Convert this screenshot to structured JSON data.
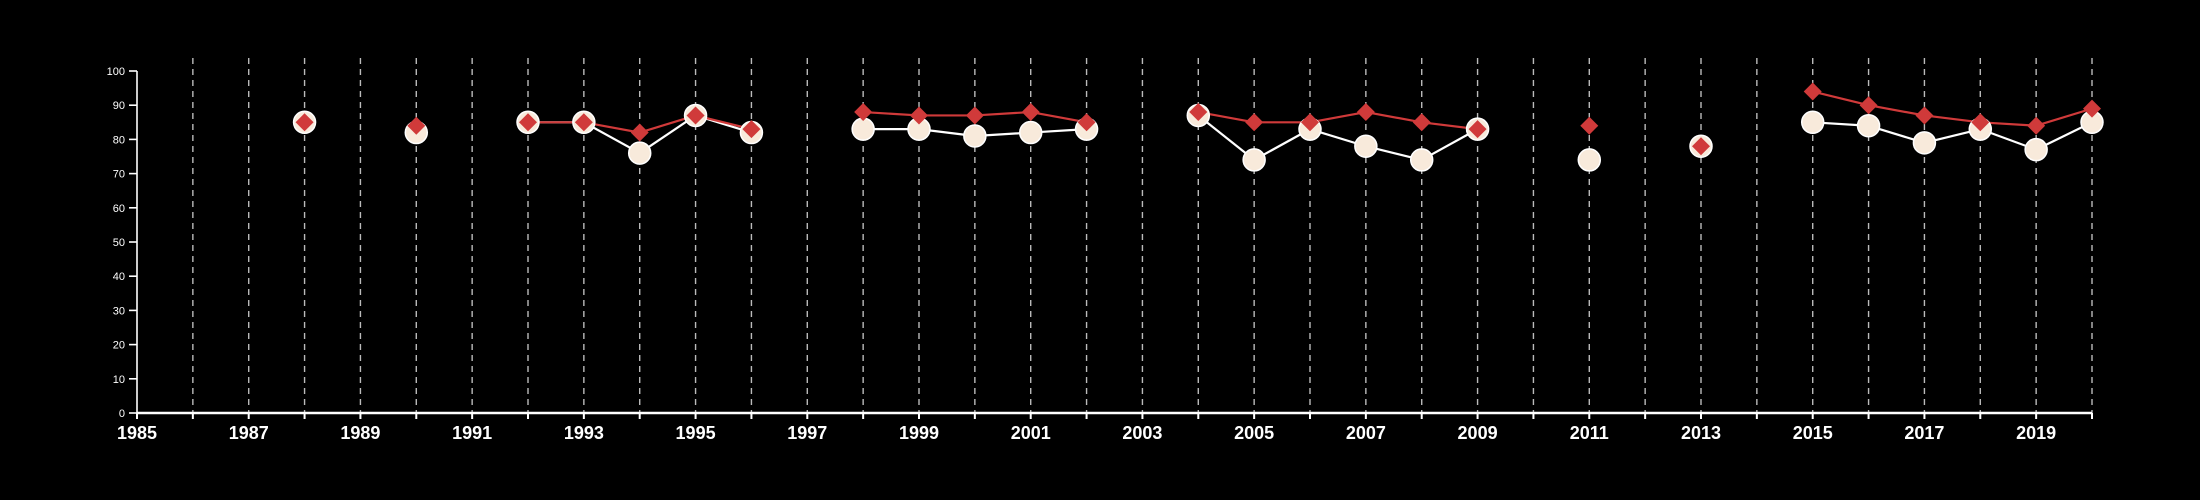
{
  "colors": {
    "background": "#000000",
    "axis": "#ffffff",
    "grid": "#bbbbbb",
    "series_red": "#d03a3a",
    "series_cream": "#f8eadb",
    "cream_line": "#ffffff"
  },
  "chart_data": {
    "type": "line",
    "title": "",
    "xlabel": "",
    "ylabel": "",
    "xlim": [
      1985,
      2020
    ],
    "ylim": [
      0,
      100
    ],
    "x_ticks": [
      1985,
      1987,
      1989,
      1991,
      1993,
      1995,
      1997,
      1999,
      2001,
      2003,
      2005,
      2007,
      2009,
      2011,
      2013,
      2015,
      2017,
      2019
    ],
    "y_ticks": [
      0,
      10,
      20,
      30,
      40,
      50,
      60,
      70,
      80,
      90,
      100
    ],
    "vertical_grid": "dashed at every year from 1986 to 2020",
    "legend": "none",
    "series": [
      {
        "marker": "diamond",
        "color": "#d03a3a",
        "points": [
          [
            1988,
            85
          ],
          [
            1990,
            84
          ],
          [
            1992,
            85
          ],
          [
            1993,
            85
          ],
          [
            1994,
            82
          ],
          [
            1995,
            87
          ],
          [
            1996,
            83
          ],
          [
            1998,
            88
          ],
          [
            1999,
            87
          ],
          [
            2000,
            87
          ],
          [
            2001,
            88
          ],
          [
            2002,
            85
          ],
          [
            2004,
            88
          ],
          [
            2005,
            85
          ],
          [
            2006,
            85
          ],
          [
            2007,
            88
          ],
          [
            2008,
            85
          ],
          [
            2009,
            83
          ],
          [
            2011,
            84
          ],
          [
            2013,
            78
          ],
          [
            2015,
            94
          ],
          [
            2016,
            90
          ],
          [
            2017,
            87
          ],
          [
            2018,
            85
          ],
          [
            2019,
            84
          ],
          [
            2020,
            89
          ]
        ]
      },
      {
        "marker": "circle",
        "color": "#f8eadb",
        "points": [
          [
            1988,
            85
          ],
          [
            1990,
            82
          ],
          [
            1992,
            85
          ],
          [
            1993,
            85
          ],
          [
            1994,
            76
          ],
          [
            1995,
            87
          ],
          [
            1996,
            82
          ],
          [
            1998,
            83
          ],
          [
            1999,
            83
          ],
          [
            2000,
            81
          ],
          [
            2001,
            82
          ],
          [
            2002,
            83
          ],
          [
            2004,
            87
          ],
          [
            2005,
            74
          ],
          [
            2006,
            83
          ],
          [
            2007,
            78
          ],
          [
            2008,
            74
          ],
          [
            2009,
            83
          ],
          [
            2011,
            74
          ],
          [
            2013,
            78
          ],
          [
            2015,
            85
          ],
          [
            2016,
            84
          ],
          [
            2017,
            79
          ],
          [
            2018,
            83
          ],
          [
            2019,
            77
          ],
          [
            2020,
            85
          ]
        ]
      }
    ]
  }
}
